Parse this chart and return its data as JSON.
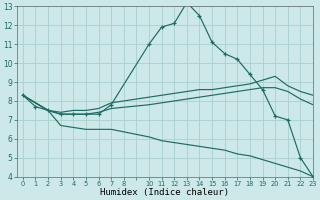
{
  "xlabel": "Humidex (Indice chaleur)",
  "bg_color": "#cce8e8",
  "grid_color": "#aacfcf",
  "line_color": "#1e6b65",
  "xlim": [
    -0.5,
    22.5
  ],
  "ylim": [
    4,
    13
  ],
  "xtick_labels": [
    "0",
    "1",
    "2",
    "3",
    "4",
    "5",
    "6",
    "7",
    "8",
    "",
    "10",
    "11",
    "12",
    "13",
    "14",
    "15",
    "16",
    "17",
    "18",
    "19",
    "20",
    "21",
    "22",
    "23"
  ],
  "yticks": [
    4,
    5,
    6,
    7,
    8,
    9,
    10,
    11,
    12,
    13
  ],
  "series": [
    {
      "xpos": [
        0,
        1,
        2,
        3,
        4,
        5,
        6,
        7,
        10,
        11,
        12,
        13,
        14,
        15,
        16,
        17,
        18,
        19,
        20,
        21,
        22,
        23
      ],
      "xi": [
        0,
        1,
        2,
        3,
        4,
        5,
        6,
        7,
        10,
        11,
        12,
        13,
        14,
        15,
        16,
        17,
        18,
        19,
        20,
        21,
        22,
        23
      ],
      "y": [
        8.3,
        7.7,
        7.5,
        7.3,
        7.3,
        7.3,
        7.3,
        7.8,
        11.0,
        11.9,
        12.1,
        13.2,
        12.5,
        11.1,
        10.5,
        10.2,
        9.4,
        8.6,
        7.2,
        7.0,
        5.0,
        4.0
      ],
      "marker": "+"
    },
    {
      "xi": [
        0,
        2,
        3,
        4,
        5,
        6,
        7,
        10,
        11,
        12,
        13,
        14,
        15,
        16,
        17,
        18,
        19,
        20,
        21,
        22,
        23
      ],
      "y": [
        8.3,
        7.5,
        7.4,
        7.5,
        7.5,
        7.6,
        7.9,
        8.2,
        8.3,
        8.4,
        8.5,
        8.6,
        8.6,
        8.7,
        8.8,
        8.9,
        9.1,
        9.3,
        8.8,
        8.5,
        8.3
      ],
      "marker": null
    },
    {
      "xi": [
        0,
        2,
        3,
        4,
        5,
        6,
        7,
        10,
        11,
        12,
        13,
        14,
        15,
        16,
        17,
        18,
        19,
        20,
        21,
        22,
        23
      ],
      "y": [
        8.3,
        7.5,
        7.3,
        7.3,
        7.3,
        7.4,
        7.6,
        7.8,
        7.9,
        8.0,
        8.1,
        8.2,
        8.3,
        8.4,
        8.5,
        8.6,
        8.7,
        8.7,
        8.5,
        8.1,
        7.8
      ],
      "marker": null
    },
    {
      "xi": [
        0,
        2,
        3,
        4,
        5,
        6,
        7,
        10,
        11,
        12,
        13,
        14,
        15,
        16,
        17,
        18,
        19,
        20,
        21,
        22,
        23
      ],
      "y": [
        8.3,
        7.5,
        6.7,
        6.6,
        6.5,
        6.5,
        6.5,
        6.1,
        5.9,
        5.8,
        5.7,
        5.6,
        5.5,
        5.4,
        5.2,
        5.1,
        4.9,
        4.7,
        4.5,
        4.3,
        4.0
      ],
      "marker": null
    }
  ]
}
